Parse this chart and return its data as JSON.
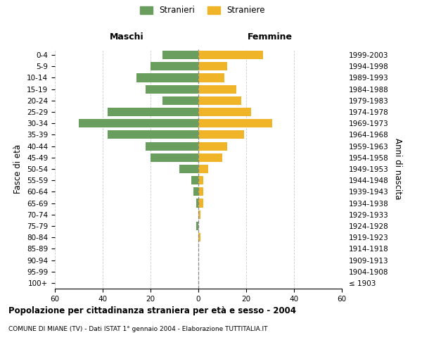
{
  "age_groups": [
    "100+",
    "95-99",
    "90-94",
    "85-89",
    "80-84",
    "75-79",
    "70-74",
    "65-69",
    "60-64",
    "55-59",
    "50-54",
    "45-49",
    "40-44",
    "35-39",
    "30-34",
    "25-29",
    "20-24",
    "15-19",
    "10-14",
    "5-9",
    "0-4"
  ],
  "birth_years": [
    "≤ 1903",
    "1904-1908",
    "1909-1913",
    "1914-1918",
    "1919-1923",
    "1924-1928",
    "1929-1933",
    "1934-1938",
    "1939-1943",
    "1944-1948",
    "1949-1953",
    "1954-1958",
    "1959-1963",
    "1964-1968",
    "1969-1973",
    "1974-1978",
    "1979-1983",
    "1984-1988",
    "1989-1993",
    "1994-1998",
    "1999-2003"
  ],
  "males": [
    0,
    0,
    0,
    0,
    0,
    1,
    0,
    1,
    2,
    3,
    8,
    20,
    22,
    38,
    50,
    38,
    15,
    22,
    26,
    20,
    15
  ],
  "females": [
    0,
    0,
    0,
    0,
    1,
    0,
    1,
    2,
    2,
    2,
    4,
    10,
    12,
    19,
    31,
    22,
    18,
    16,
    11,
    12,
    27
  ],
  "male_color": "#6a9e5f",
  "female_color": "#f0b429",
  "center_line_color": "#888888",
  "grid_color": "#cccccc",
  "background_color": "#ffffff",
  "title": "Popolazione per cittadinanza straniera per età e sesso - 2004",
  "subtitle": "COMUNE DI MIANE (TV) - Dati ISTAT 1° gennaio 2004 - Elaborazione TUTTITALIA.IT",
  "label_maschi": "Maschi",
  "label_femmine": "Femmine",
  "ylabel_left": "Fasce di età",
  "ylabel_right": "Anni di nascita",
  "xlim": 60,
  "legend_males": "Stranieri",
  "legend_females": "Straniere"
}
